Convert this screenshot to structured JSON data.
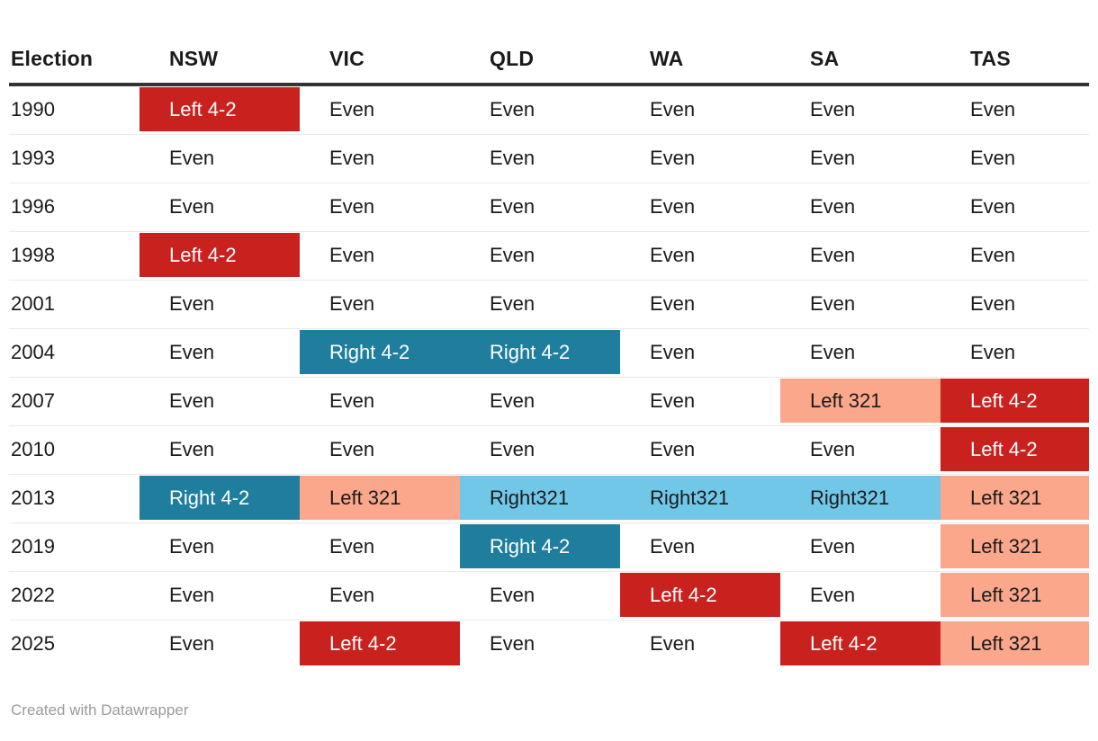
{
  "chart_data": {
    "type": "table",
    "columns": [
      "Election",
      "NSW",
      "VIC",
      "QLD",
      "WA",
      "SA",
      "TAS"
    ],
    "rows": [
      {
        "year": "1990",
        "values": [
          "Left 4-2",
          "Even",
          "Even",
          "Even",
          "Even",
          "Even"
        ],
        "styles": [
          "red",
          "none",
          "none",
          "none",
          "none",
          "none"
        ]
      },
      {
        "year": "1993",
        "values": [
          "Even",
          "Even",
          "Even",
          "Even",
          "Even",
          "Even"
        ],
        "styles": [
          "none",
          "none",
          "none",
          "none",
          "none",
          "none"
        ]
      },
      {
        "year": "1996",
        "values": [
          "Even",
          "Even",
          "Even",
          "Even",
          "Even",
          "Even"
        ],
        "styles": [
          "none",
          "none",
          "none",
          "none",
          "none",
          "none"
        ]
      },
      {
        "year": "1998",
        "values": [
          "Left 4-2",
          "Even",
          "Even",
          "Even",
          "Even",
          "Even"
        ],
        "styles": [
          "red",
          "none",
          "none",
          "none",
          "none",
          "none"
        ]
      },
      {
        "year": "2001",
        "values": [
          "Even",
          "Even",
          "Even",
          "Even",
          "Even",
          "Even"
        ],
        "styles": [
          "none",
          "none",
          "none",
          "none",
          "none",
          "none"
        ]
      },
      {
        "year": "2004",
        "values": [
          "Even",
          "Right 4-2",
          "Right 4-2",
          "Even",
          "Even",
          "Even"
        ],
        "styles": [
          "none",
          "teal",
          "teal",
          "none",
          "none",
          "none"
        ]
      },
      {
        "year": "2007",
        "values": [
          "Even",
          "Even",
          "Even",
          "Even",
          "Left 321",
          "Left 4-2"
        ],
        "styles": [
          "none",
          "none",
          "none",
          "none",
          "salmon",
          "red"
        ]
      },
      {
        "year": "2010",
        "values": [
          "Even",
          "Even",
          "Even",
          "Even",
          "Even",
          "Left 4-2"
        ],
        "styles": [
          "none",
          "none",
          "none",
          "none",
          "none",
          "red"
        ]
      },
      {
        "year": "2013",
        "values": [
          "Right 4-2",
          "Left 321",
          "Right321",
          "Right321",
          "Right321",
          "Left 321"
        ],
        "styles": [
          "teal",
          "salmon",
          "lightblue",
          "lightblue",
          "lightblue",
          "salmon"
        ]
      },
      {
        "year": "2019",
        "values": [
          "Even",
          "Even",
          "Right 4-2",
          "Even",
          "Even",
          "Left 321"
        ],
        "styles": [
          "none",
          "none",
          "teal",
          "none",
          "none",
          "salmon"
        ]
      },
      {
        "year": "2022",
        "values": [
          "Even",
          "Even",
          "Even",
          "Left 4-2",
          "Even",
          "Left 321"
        ],
        "styles": [
          "none",
          "none",
          "none",
          "red",
          "none",
          "salmon"
        ]
      },
      {
        "year": "2025",
        "values": [
          "Even",
          "Left 4-2",
          "Even",
          "Even",
          "Left 4-2",
          "Left 321"
        ],
        "styles": [
          "none",
          "red",
          "none",
          "none",
          "red",
          "salmon"
        ]
      }
    ],
    "style_legend": {
      "red": "strong left result (Left 4-2)",
      "teal": "strong right result (Right 4-2)",
      "salmon": "light left result (Left 321)",
      "lightblue": "light right result (Right321)",
      "none": "Even / no highlight"
    }
  },
  "colors": {
    "red": "#c9211e",
    "teal": "#1f7e9d",
    "salmon": "#faa78c",
    "lightblue": "#71c7e8",
    "header_border": "#333333",
    "row_line": "#eaeaea",
    "text": "#1a1a1a",
    "text_on_dark": "#ffffff",
    "credit": "#9b9b9b"
  },
  "footer": {
    "credit": "Created with Datawrapper"
  }
}
